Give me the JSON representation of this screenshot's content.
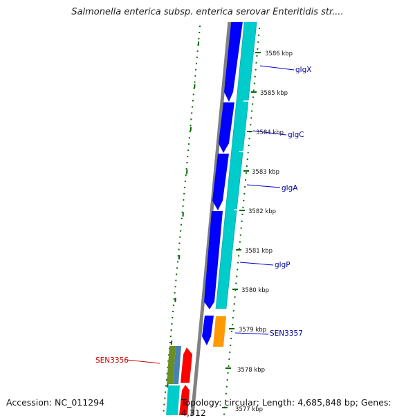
{
  "title": "Salmonella enterica subsp. enterica serovar Enteritidis str....",
  "footer": {
    "accession": "Accession: NC_011294",
    "topology": "Topology: circular; Length: 4,685,848 bp; Genes: 4,312"
  },
  "kbp_labels": [
    "3586 kbp",
    "3585 kbp",
    "3584 kbp",
    "3583 kbp",
    "3582 kbp",
    "3581 kbp",
    "3580 kbp",
    "3579 kbp",
    "3578 kbp",
    "3577 kbp"
  ],
  "genes_forward": [
    {
      "name": "glgX",
      "color": "#0000ff"
    },
    {
      "name": "glgC",
      "color": "#0000ff"
    },
    {
      "name": "glgA",
      "color": "#0000ff"
    },
    {
      "name": "glgP",
      "color": "#0000ff"
    },
    {
      "name": "SEN3357",
      "color": "#0000ff"
    }
  ],
  "genes_reverse": [
    {
      "name": "SEN3356",
      "color": "#ff0000"
    }
  ],
  "colors": {
    "cds_forward": "#0000ff",
    "cds_reverse": "#ff0000",
    "cog_cyan": "#00cccc",
    "cog_orange": "#ff9900",
    "cog_olive": "#6b8e23",
    "cog_steel": "#4682b4",
    "backbone": "#808080",
    "gc_content": "#006600",
    "label_forward": "#000099",
    "label_reverse": "#cc0000"
  }
}
